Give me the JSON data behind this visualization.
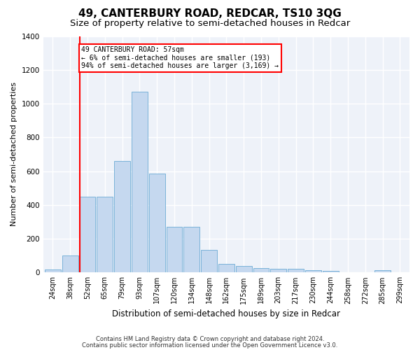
{
  "title": "49, CANTERBURY ROAD, REDCAR, TS10 3QG",
  "subtitle": "Size of property relative to semi-detached houses in Redcar",
  "xlabel": "Distribution of semi-detached houses by size in Redcar",
  "ylabel": "Number of semi-detached properties",
  "footnote1": "Contains HM Land Registry data © Crown copyright and database right 2024.",
  "footnote2": "Contains public sector information licensed under the Open Government Licence v3.0.",
  "bar_labels": [
    "24sqm",
    "38sqm",
    "52sqm",
    "65sqm",
    "79sqm",
    "93sqm",
    "107sqm",
    "120sqm",
    "134sqm",
    "148sqm",
    "162sqm",
    "175sqm",
    "189sqm",
    "203sqm",
    "217sqm",
    "230sqm",
    "244sqm",
    "258sqm",
    "272sqm",
    "285sqm",
    "299sqm"
  ],
  "bar_values": [
    18,
    100,
    450,
    450,
    660,
    1070,
    585,
    270,
    270,
    135,
    52,
    38,
    25,
    20,
    20,
    15,
    10,
    0,
    0,
    15,
    0
  ],
  "bar_color": "#c5d8ef",
  "bar_edgecolor": "#6aaad4",
  "highlight_line_color": "red",
  "highlight_line_index": 2,
  "annotation_text": "49 CANTERBURY ROAD: 57sqm\n← 6% of semi-detached houses are smaller (193)\n94% of semi-detached houses are larger (3,169) →",
  "annotation_box_facecolor": "white",
  "annotation_box_edgecolor": "red",
  "ylim": [
    0,
    1400
  ],
  "yticks": [
    0,
    200,
    400,
    600,
    800,
    1000,
    1200,
    1400
  ],
  "plot_bg_color": "#eef2f9",
  "grid_color": "white",
  "title_fontsize": 11,
  "subtitle_fontsize": 9.5,
  "ylabel_fontsize": 8,
  "xlabel_fontsize": 8.5,
  "footnote_fontsize": 6,
  "tick_fontsize": 7,
  "ytick_fontsize": 7.5,
  "annotation_fontsize": 7
}
